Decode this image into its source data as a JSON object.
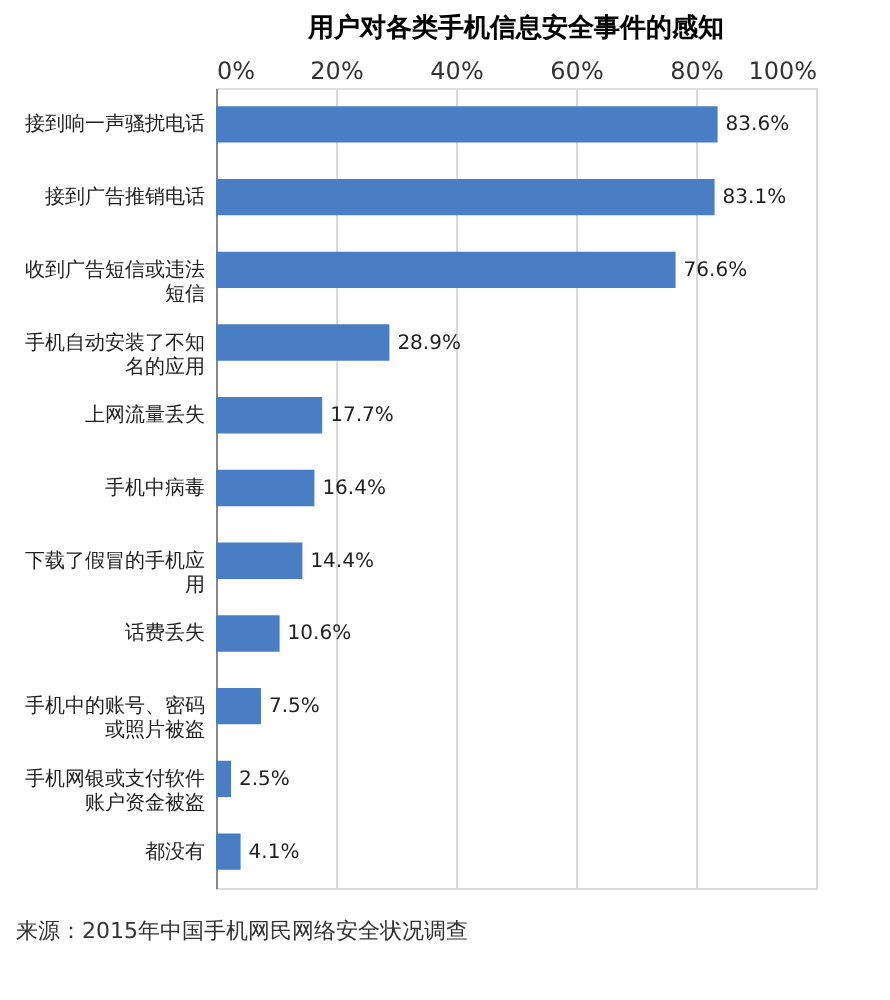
{
  "chart_data": {
    "type": "bar",
    "orientation": "horizontal",
    "title": "用户对各类手机信息安全事件的感知",
    "categories": [
      "接到响一声骚扰电话",
      "接到广告推销电话",
      "收到广告短信或违法短信",
      "手机自动安装了不知名的应用",
      "上网流量丢失",
      "手机中病毒",
      "下载了假冒的手机应用",
      "话费丢失",
      "手机中的账号、密码或照片被盗",
      "手机网银或支付软件账户资金被盗",
      "都没有"
    ],
    "values": [
      83.6,
      83.1,
      76.6,
      28.9,
      17.7,
      16.4,
      14.4,
      10.6,
      7.5,
      2.5,
      4.1
    ],
    "value_labels": [
      "83.6%",
      "83.1%",
      "76.6%",
      "28.9%",
      "17.7%",
      "16.4%",
      "14.4%",
      "10.6%",
      "7.5%",
      "2.5%",
      "4.1%"
    ],
    "color": "#4a7ec4",
    "xlim": [
      0,
      100
    ],
    "xticks": [
      {
        "value": 0,
        "label": "0%"
      },
      {
        "value": 20,
        "label": "20%"
      },
      {
        "value": 40,
        "label": "40%"
      },
      {
        "value": 60,
        "label": "60%"
      },
      {
        "value": 80,
        "label": "80%"
      },
      {
        "value": 100,
        "label": "100%"
      }
    ],
    "grid": "x",
    "annotations": [
      "来源：2015年中国手机网民网络安全状况调查"
    ]
  }
}
